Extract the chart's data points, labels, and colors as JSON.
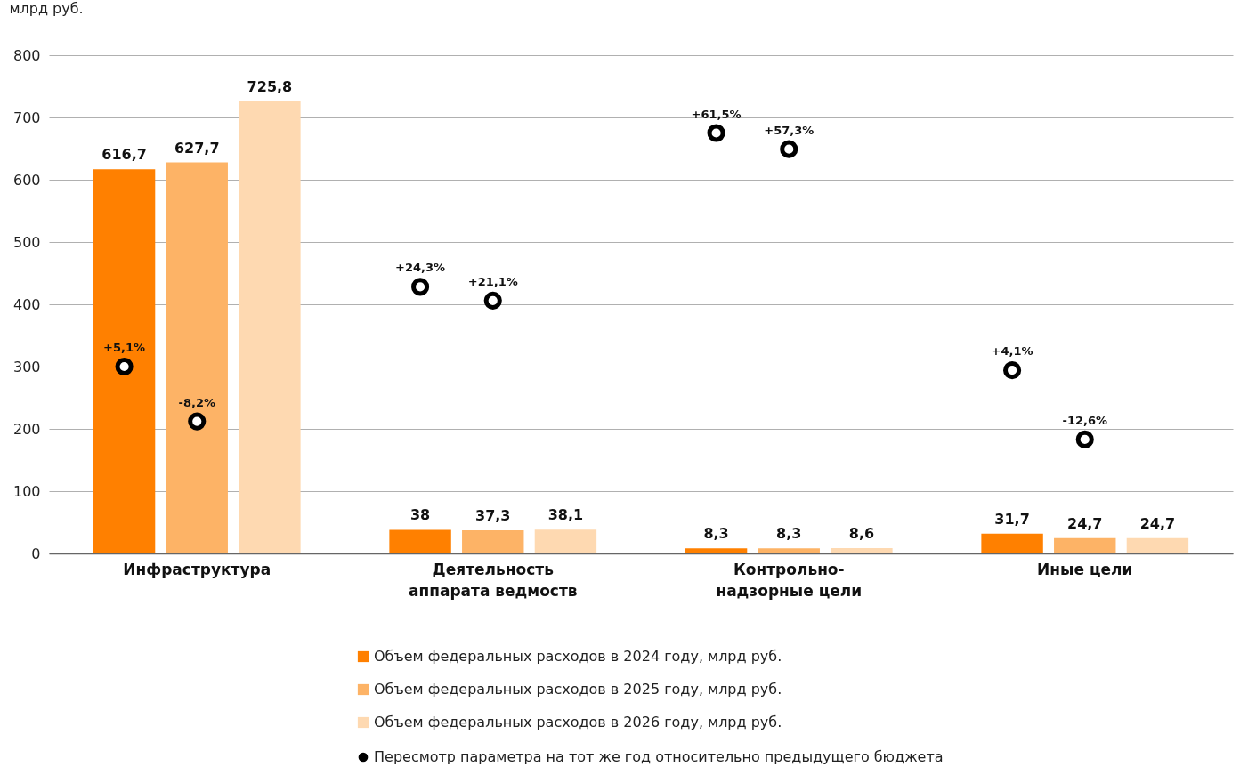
{
  "chart_data": {
    "type": "bar",
    "ylabel": "млрд руб.",
    "categories": [
      "Инфраструктура",
      "Деятельность\nаппарата ведмоств",
      "Контрольно-\nнадзорные цели",
      "Иные цели"
    ],
    "series": [
      {
        "name": "Объем федеральных расходов в 2024 году, млрд руб.",
        "color": "#ff8000",
        "values": [
          616.7,
          38,
          8.3,
          31.7
        ],
        "value_labels": [
          "616,7",
          "38",
          "8,3",
          "31,7"
        ]
      },
      {
        "name": "Объем федеральных расходов в 2025 году, млрд руб.",
        "color": "#fdb366",
        "values": [
          627.7,
          37.3,
          8.3,
          24.7
        ],
        "value_labels": [
          "627,7",
          "37,3",
          "8,3",
          "24,7"
        ]
      },
      {
        "name": "Объем федеральных расходов в 2026 году, млрд руб.",
        "color": "#fed9b1",
        "values": [
          725.8,
          38.1,
          8.6,
          24.7
        ],
        "value_labels": [
          "725,8",
          "38,1",
          "8,6",
          "24,7"
        ]
      },
      {
        "name": "Пересмотр параметра на тот же год относительно предыдущего бюджета",
        "type": "scatter",
        "marker": "circle",
        "color": "#000000",
        "x": [
          "Инфраструктура",
          "Инфраструктура",
          "Деятельность\nаппарата ведмоств",
          "Деятельность\nаппарата ведмоств",
          "Контрольно-\nнадзорные цели",
          "Контрольно-\nнадзорные цели",
          "Иные цели",
          "Иные цели"
        ],
        "values": [
          300,
          212,
          428,
          406,
          675,
          649,
          294,
          183
        ]
      }
    ],
    "annotations": [
      "+5,1%",
      "-8,2%",
      "+24,3%",
      "+21,1%",
      "+61,5%",
      "+57,3%",
      "+4,1%",
      "-12,6%"
    ],
    "ylim": [
      0,
      800
    ],
    "yticks": [
      0,
      100,
      200,
      300,
      400,
      500,
      600,
      700,
      800
    ],
    "grid": "y",
    "legend": "bottom"
  }
}
